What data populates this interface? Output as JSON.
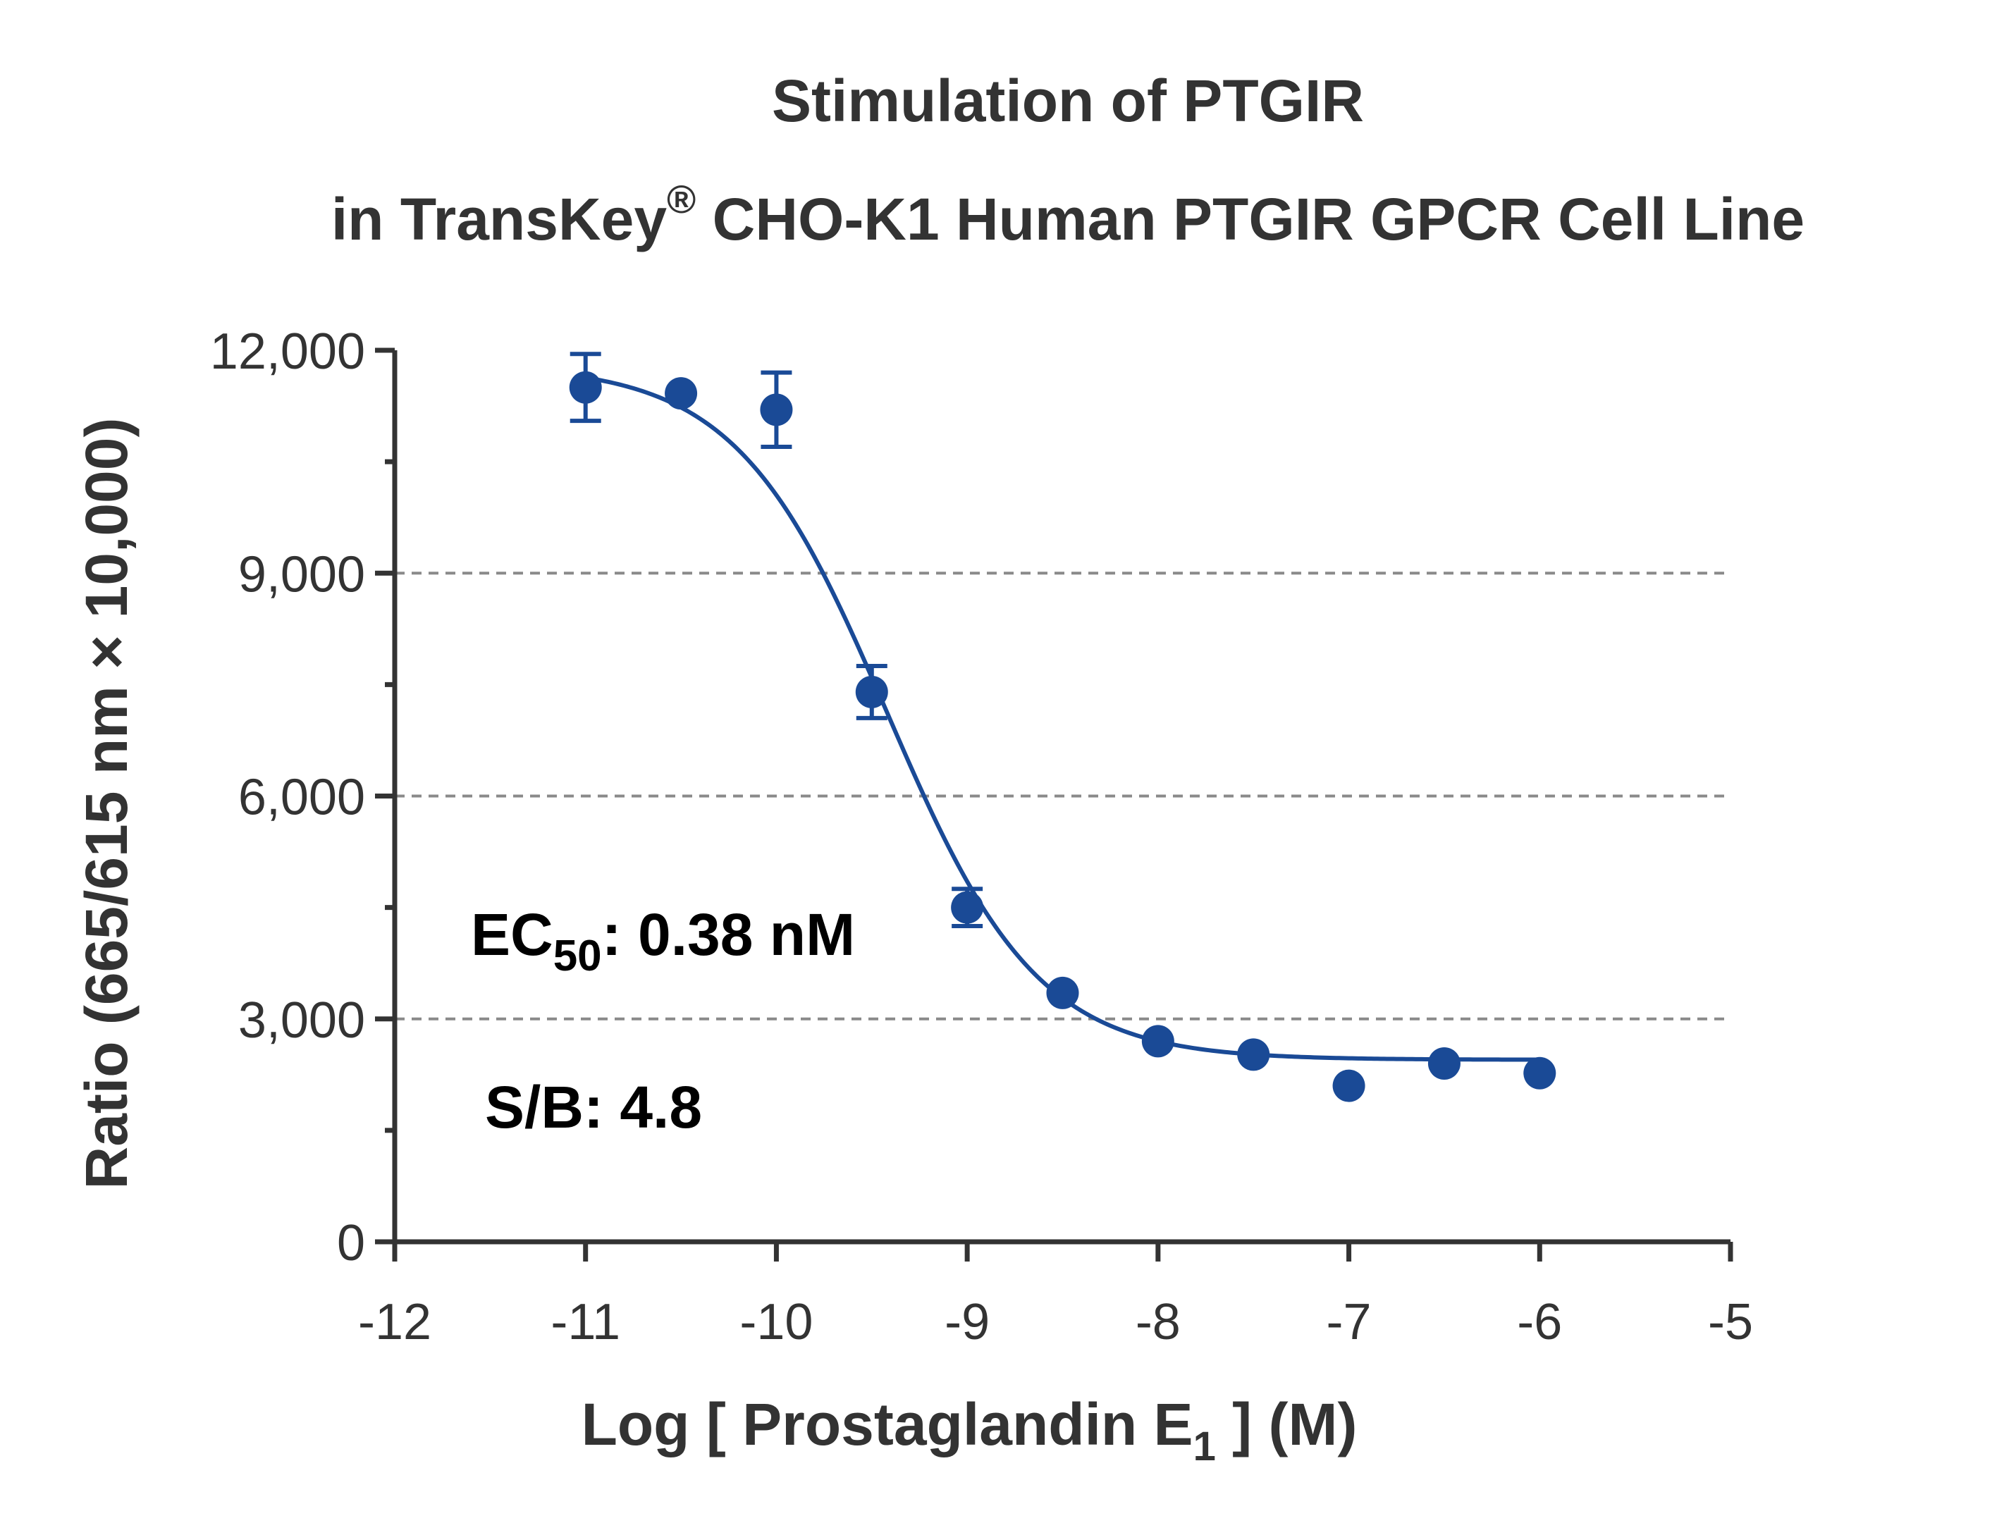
{
  "chart_data": {
    "type": "scatter",
    "title_line1": "Stimulation of  PTGIR",
    "title_line2_pre": "in TransKey",
    "title_line2_sup": "®",
    "title_line2_post": " CHO-K1 Human PTGIR GPCR Cell Line",
    "xlabel_pre": "Log [ Prostaglandin E",
    "xlabel_sub": "1",
    "xlabel_post": " ]  (M)",
    "ylabel": "Ratio (665/615 nm × 10,000)",
    "xlim": [
      -12,
      -5
    ],
    "ylim": [
      0,
      12000
    ],
    "x_ticks": [
      -12,
      -11,
      -10,
      -9,
      -8,
      -7,
      -6,
      -5
    ],
    "x_tick_labels": [
      "-12",
      "-11",
      "-10",
      "-9",
      "-8",
      "-7",
      "-6",
      "-5"
    ],
    "y_ticks": [
      0,
      3000,
      6000,
      9000,
      12000
    ],
    "y_tick_labels": [
      "0",
      "3,000",
      "6,000",
      "9,000",
      "12,000"
    ],
    "y_minor_ticks": [
      1500,
      4500,
      7500,
      10500
    ],
    "grid": {
      "y": [
        3000,
        6000,
        9000
      ],
      "style": "dashed"
    },
    "color": "#1a4a96",
    "points": {
      "x": [
        -11,
        -10.5,
        -10,
        -9.5,
        -9,
        -8.5,
        -8,
        -7.5,
        -7,
        -6.5,
        -6
      ],
      "y": [
        11500,
        11420,
        11200,
        7400,
        4500,
        3350,
        2700,
        2520,
        2100,
        2400,
        2270
      ],
      "err": [
        450,
        0,
        500,
        350,
        250,
        0,
        0,
        0,
        0,
        0,
        0
      ]
    },
    "fit": {
      "top": 11800,
      "bottom": 2450,
      "log_ec50": -9.42,
      "hill": 1.1
    },
    "annotations": {
      "ec50_pre": "EC",
      "ec50_sub": "50",
      "ec50_post": ": 0.38 nM",
      "sb": "S/B: 4.8"
    }
  }
}
